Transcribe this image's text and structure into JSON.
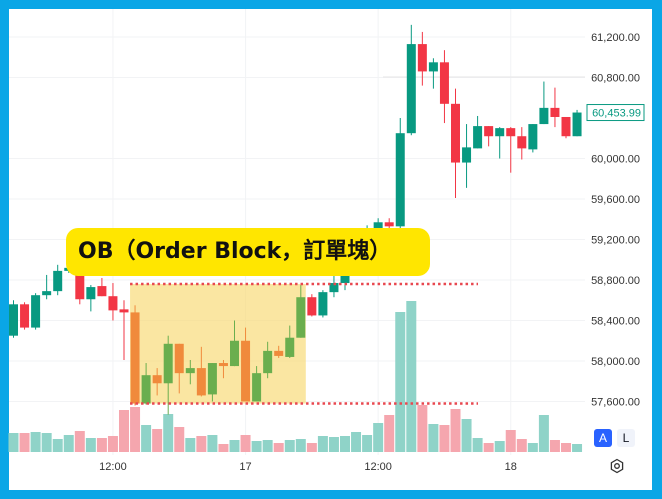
{
  "annotation": {
    "label": "OB（Order Block，訂單塊）",
    "box_price_range": [
      57580,
      58760
    ],
    "line_color": "#e8474f",
    "fill_color": "#f7d870"
  },
  "controls": {
    "auto_scale": "A",
    "log_scale": "L",
    "settings_icon": "gear-icon"
  },
  "colors": {
    "up": "#089981",
    "down": "#f23645",
    "ob_up": "#6aae4e",
    "ob_down": "#f08a3c",
    "vol_up": "#8fd3c8",
    "vol_down": "#f5a6ae",
    "frame": "#0aa6e6",
    "label_bg": "#ffe600"
  },
  "chart_data": {
    "type": "candlestick",
    "price_axis": {
      "ticks": [
        "61,200.00",
        "60,800.00",
        "60,000.00",
        "59,600.00",
        "59,200.00",
        "58,800.00",
        "58,400.00",
        "58,000.00",
        "57,600.00"
      ],
      "tick_values": [
        61200,
        60800,
        60000,
        59600,
        59200,
        58800,
        58400,
        58000,
        57600
      ],
      "ylim": [
        57400,
        61400
      ]
    },
    "last_price": {
      "value": 60453.99,
      "label": "60,453.99"
    },
    "time_axis": {
      "ticks": [
        "12:00",
        "17",
        "12:00",
        "18"
      ],
      "tick_index": [
        9,
        21,
        33,
        45
      ]
    },
    "ob_candle_range": [
      12,
      27
    ],
    "candles": [
      [
        58250,
        58600,
        58230,
        58560
      ],
      [
        58560,
        58580,
        58310,
        58330
      ],
      [
        58330,
        58670,
        58310,
        58650
      ],
      [
        58650,
        58850,
        58610,
        58690
      ],
      [
        58690,
        58950,
        58650,
        58890
      ],
      [
        58890,
        58920,
        58870,
        58920
      ],
      [
        58850,
        58900,
        58560,
        58610
      ],
      [
        58610,
        58750,
        58490,
        58730
      ],
      [
        58740,
        58820,
        58640,
        58640
      ],
      [
        58640,
        58770,
        58400,
        58500
      ],
      [
        58510,
        58600,
        58010,
        58480
      ],
      [
        58480,
        58550,
        57560,
        57580
      ],
      [
        57580,
        57980,
        57570,
        57860
      ],
      [
        57860,
        57930,
        57660,
        57780
      ],
      [
        57780,
        58250,
        57470,
        58170
      ],
      [
        58170,
        58170,
        57680,
        57880
      ],
      [
        57880,
        58010,
        57770,
        57930
      ],
      [
        57930,
        58140,
        57650,
        57660
      ],
      [
        57670,
        57980,
        57600,
        57980
      ],
      [
        57980,
        58010,
        57830,
        57950
      ],
      [
        57950,
        58400,
        57950,
        58200
      ],
      [
        58200,
        58330,
        57600,
        57600
      ],
      [
        57600,
        57950,
        57600,
        57880
      ],
      [
        57880,
        58190,
        57830,
        58100
      ],
      [
        58100,
        58150,
        58030,
        58050
      ],
      [
        58040,
        58350,
        58030,
        58230
      ],
      [
        58230,
        58750,
        58230,
        58630
      ],
      [
        58630,
        58660,
        58440,
        58450
      ],
      [
        58450,
        58700,
        58430,
        58680
      ],
      [
        58680,
        58850,
        58630,
        58770
      ],
      [
        58770,
        58920,
        58700,
        58860
      ],
      [
        58860,
        58980,
        58840,
        58980
      ],
      [
        58980,
        59340,
        58950,
        59310
      ],
      [
        59310,
        59410,
        59290,
        59370
      ],
      [
        59370,
        59410,
        59310,
        59330
      ],
      [
        59330,
        60400,
        59310,
        60250
      ],
      [
        60250,
        61320,
        60230,
        61130
      ],
      [
        61130,
        61250,
        60720,
        60860
      ],
      [
        60860,
        60990,
        60690,
        60950
      ],
      [
        60950,
        61070,
        60350,
        60540
      ],
      [
        60540,
        60690,
        59610,
        59960
      ],
      [
        59960,
        60340,
        59710,
        60110
      ],
      [
        60100,
        60420,
        60100,
        60320
      ],
      [
        60320,
        60320,
        60120,
        60220
      ],
      [
        60220,
        60310,
        60000,
        60300
      ],
      [
        60300,
        60310,
        59860,
        60220
      ],
      [
        60220,
        60310,
        59990,
        60100
      ],
      [
        60090,
        60340,
        60060,
        60340
      ],
      [
        60340,
        60760,
        60340,
        60500
      ],
      [
        60500,
        60700,
        60310,
        60410
      ],
      [
        60410,
        60410,
        60200,
        60220
      ],
      [
        60220,
        60480,
        60220,
        60453.99
      ]
    ],
    "candle_fields": [
      "open",
      "high",
      "low",
      "close"
    ],
    "volume": [
      19,
      19,
      20,
      19,
      13,
      17,
      21,
      14,
      14,
      16,
      42,
      45,
      27,
      23,
      38,
      25,
      14,
      16,
      17,
      8,
      12,
      17,
      11,
      12,
      9,
      12,
      13,
      9,
      16,
      15,
      16,
      20,
      17,
      29,
      37,
      140,
      151,
      47,
      28,
      27,
      43,
      33,
      14,
      9,
      11,
      22,
      13,
      9,
      37,
      12,
      9,
      8
    ],
    "grid": true
  }
}
